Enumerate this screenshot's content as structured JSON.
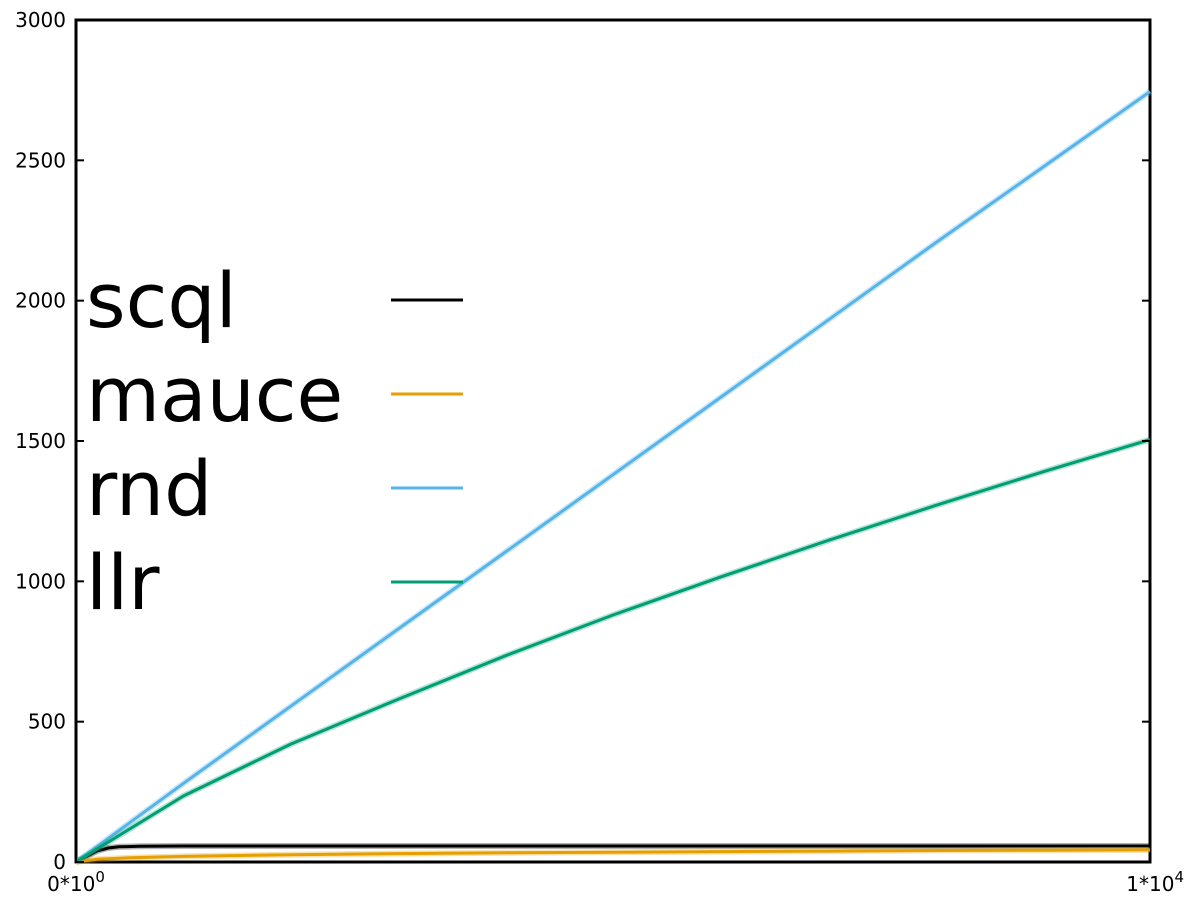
{
  "chart_data": {
    "type": "line",
    "title": "",
    "xlabel": "",
    "ylabel": "",
    "xlim": [
      0,
      10000
    ],
    "ylim": [
      0,
      3000
    ],
    "x_ticks": [
      {
        "value": 0,
        "mantissa": "0*10",
        "exp": "0"
      },
      {
        "value": 10000,
        "mantissa": "1*10",
        "exp": "4"
      }
    ],
    "y_ticks": [
      0,
      500,
      1000,
      1500,
      2000,
      2500,
      3000
    ],
    "grid": false,
    "legend_position": "center-left",
    "series": [
      {
        "name": "scql",
        "color": "#000000",
        "x": [
          0,
          100,
          200,
          300,
          400,
          600,
          1000,
          2000,
          4000,
          6000,
          8000,
          10000
        ],
        "y": [
          0,
          20,
          40,
          50,
          54,
          56,
          57,
          57,
          57,
          57,
          57,
          57
        ]
      },
      {
        "name": "mauce",
        "color": "#e69f00",
        "x": [
          0,
          200,
          500,
          1000,
          2000,
          3000,
          4000,
          5000,
          6000,
          7000,
          8000,
          9000,
          10000
        ],
        "y": [
          0,
          10,
          15,
          20,
          26,
          30,
          33,
          35,
          37,
          39,
          41,
          42,
          43
        ]
      },
      {
        "name": "rnd",
        "color": "#56b4e9",
        "x": [
          0,
          1000,
          2000,
          3000,
          4000,
          5000,
          6000,
          7000,
          8000,
          9000,
          10000
        ],
        "y": [
          0,
          280,
          555,
          830,
          1105,
          1380,
          1655,
          1930,
          2205,
          2475,
          2745
        ]
      },
      {
        "name": "llr",
        "color": "#009e73",
        "x": [
          0,
          1000,
          2000,
          3000,
          4000,
          5000,
          6000,
          7000,
          8000,
          9000,
          10000
        ],
        "y": [
          0,
          235,
          420,
          580,
          735,
          880,
          1015,
          1145,
          1270,
          1390,
          1505
        ]
      }
    ]
  }
}
